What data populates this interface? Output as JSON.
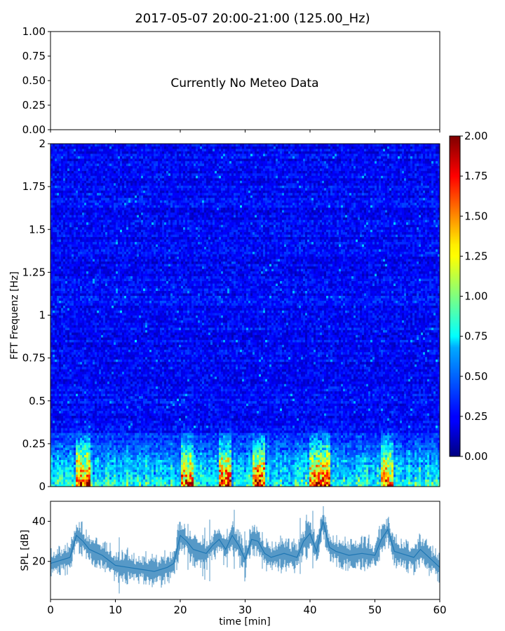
{
  "title": "2017-05-07 20:00-21:00 (125.00_Hz)",
  "meteo_panel": {
    "message": "Currently No Meteo Data",
    "ylim": [
      0,
      1
    ],
    "yticks": [
      "0.00",
      "0.25",
      "0.50",
      "0.75",
      "1.00"
    ],
    "xticks_count": 7
  },
  "chart_data": [
    {
      "type": "heatmap",
      "panel": "spectrogram",
      "ylabel": "FFT Frequenz [Hz]",
      "xlim": [
        0,
        60
      ],
      "ylim": [
        0,
        2
      ],
      "yticks": [
        "0",
        "0.25",
        "0.5",
        "0.75",
        "1",
        "1.25",
        "1.5",
        "1.75",
        "2"
      ],
      "colormap": "jet",
      "colorbar": {
        "vmin": 0,
        "vmax": 2,
        "ticks": [
          "0.00",
          "0.25",
          "0.50",
          "0.75",
          "1.00",
          "1.25",
          "1.50",
          "1.75",
          "2.00"
        ]
      },
      "description_profile": {
        "baseline_level": 0.25,
        "low_freq_boost_below_hz": 0.35,
        "high_level_time_windows_min": [
          [
            4,
            6
          ],
          [
            20,
            22
          ],
          [
            26,
            28
          ],
          [
            31,
            33
          ],
          [
            40,
            43
          ],
          [
            51,
            53
          ]
        ]
      }
    },
    {
      "type": "line",
      "panel": "spl",
      "ylabel": "SPL [dB]",
      "xlabel": "time [min]",
      "xlim": [
        0,
        60
      ],
      "ylim": [
        1,
        50
      ],
      "xticks": [
        "0",
        "10",
        "20",
        "30",
        "40",
        "50",
        "60"
      ],
      "yticks": [
        "20",
        "40"
      ],
      "color": "#1f77b4",
      "x": [
        0,
        2,
        3,
        4,
        5,
        6,
        8,
        10,
        12,
        14,
        16,
        18,
        19,
        20,
        21,
        22,
        24,
        25,
        26,
        27,
        28,
        29,
        30,
        31,
        32,
        33,
        34,
        36,
        38,
        39,
        40,
        41,
        42,
        43,
        44,
        46,
        48,
        50,
        51,
        52,
        53,
        54,
        56,
        57,
        58,
        60
      ],
      "y": [
        19,
        21,
        22,
        33,
        30,
        26,
        23,
        18,
        17,
        16,
        15,
        17,
        19,
        33,
        30,
        26,
        24,
        28,
        31,
        26,
        33,
        28,
        21,
        31,
        30,
        24,
        22,
        24,
        22,
        30,
        34,
        25,
        40,
        27,
        25,
        23,
        24,
        23,
        31,
        36,
        25,
        24,
        22,
        26,
        23,
        17
      ]
    }
  ]
}
